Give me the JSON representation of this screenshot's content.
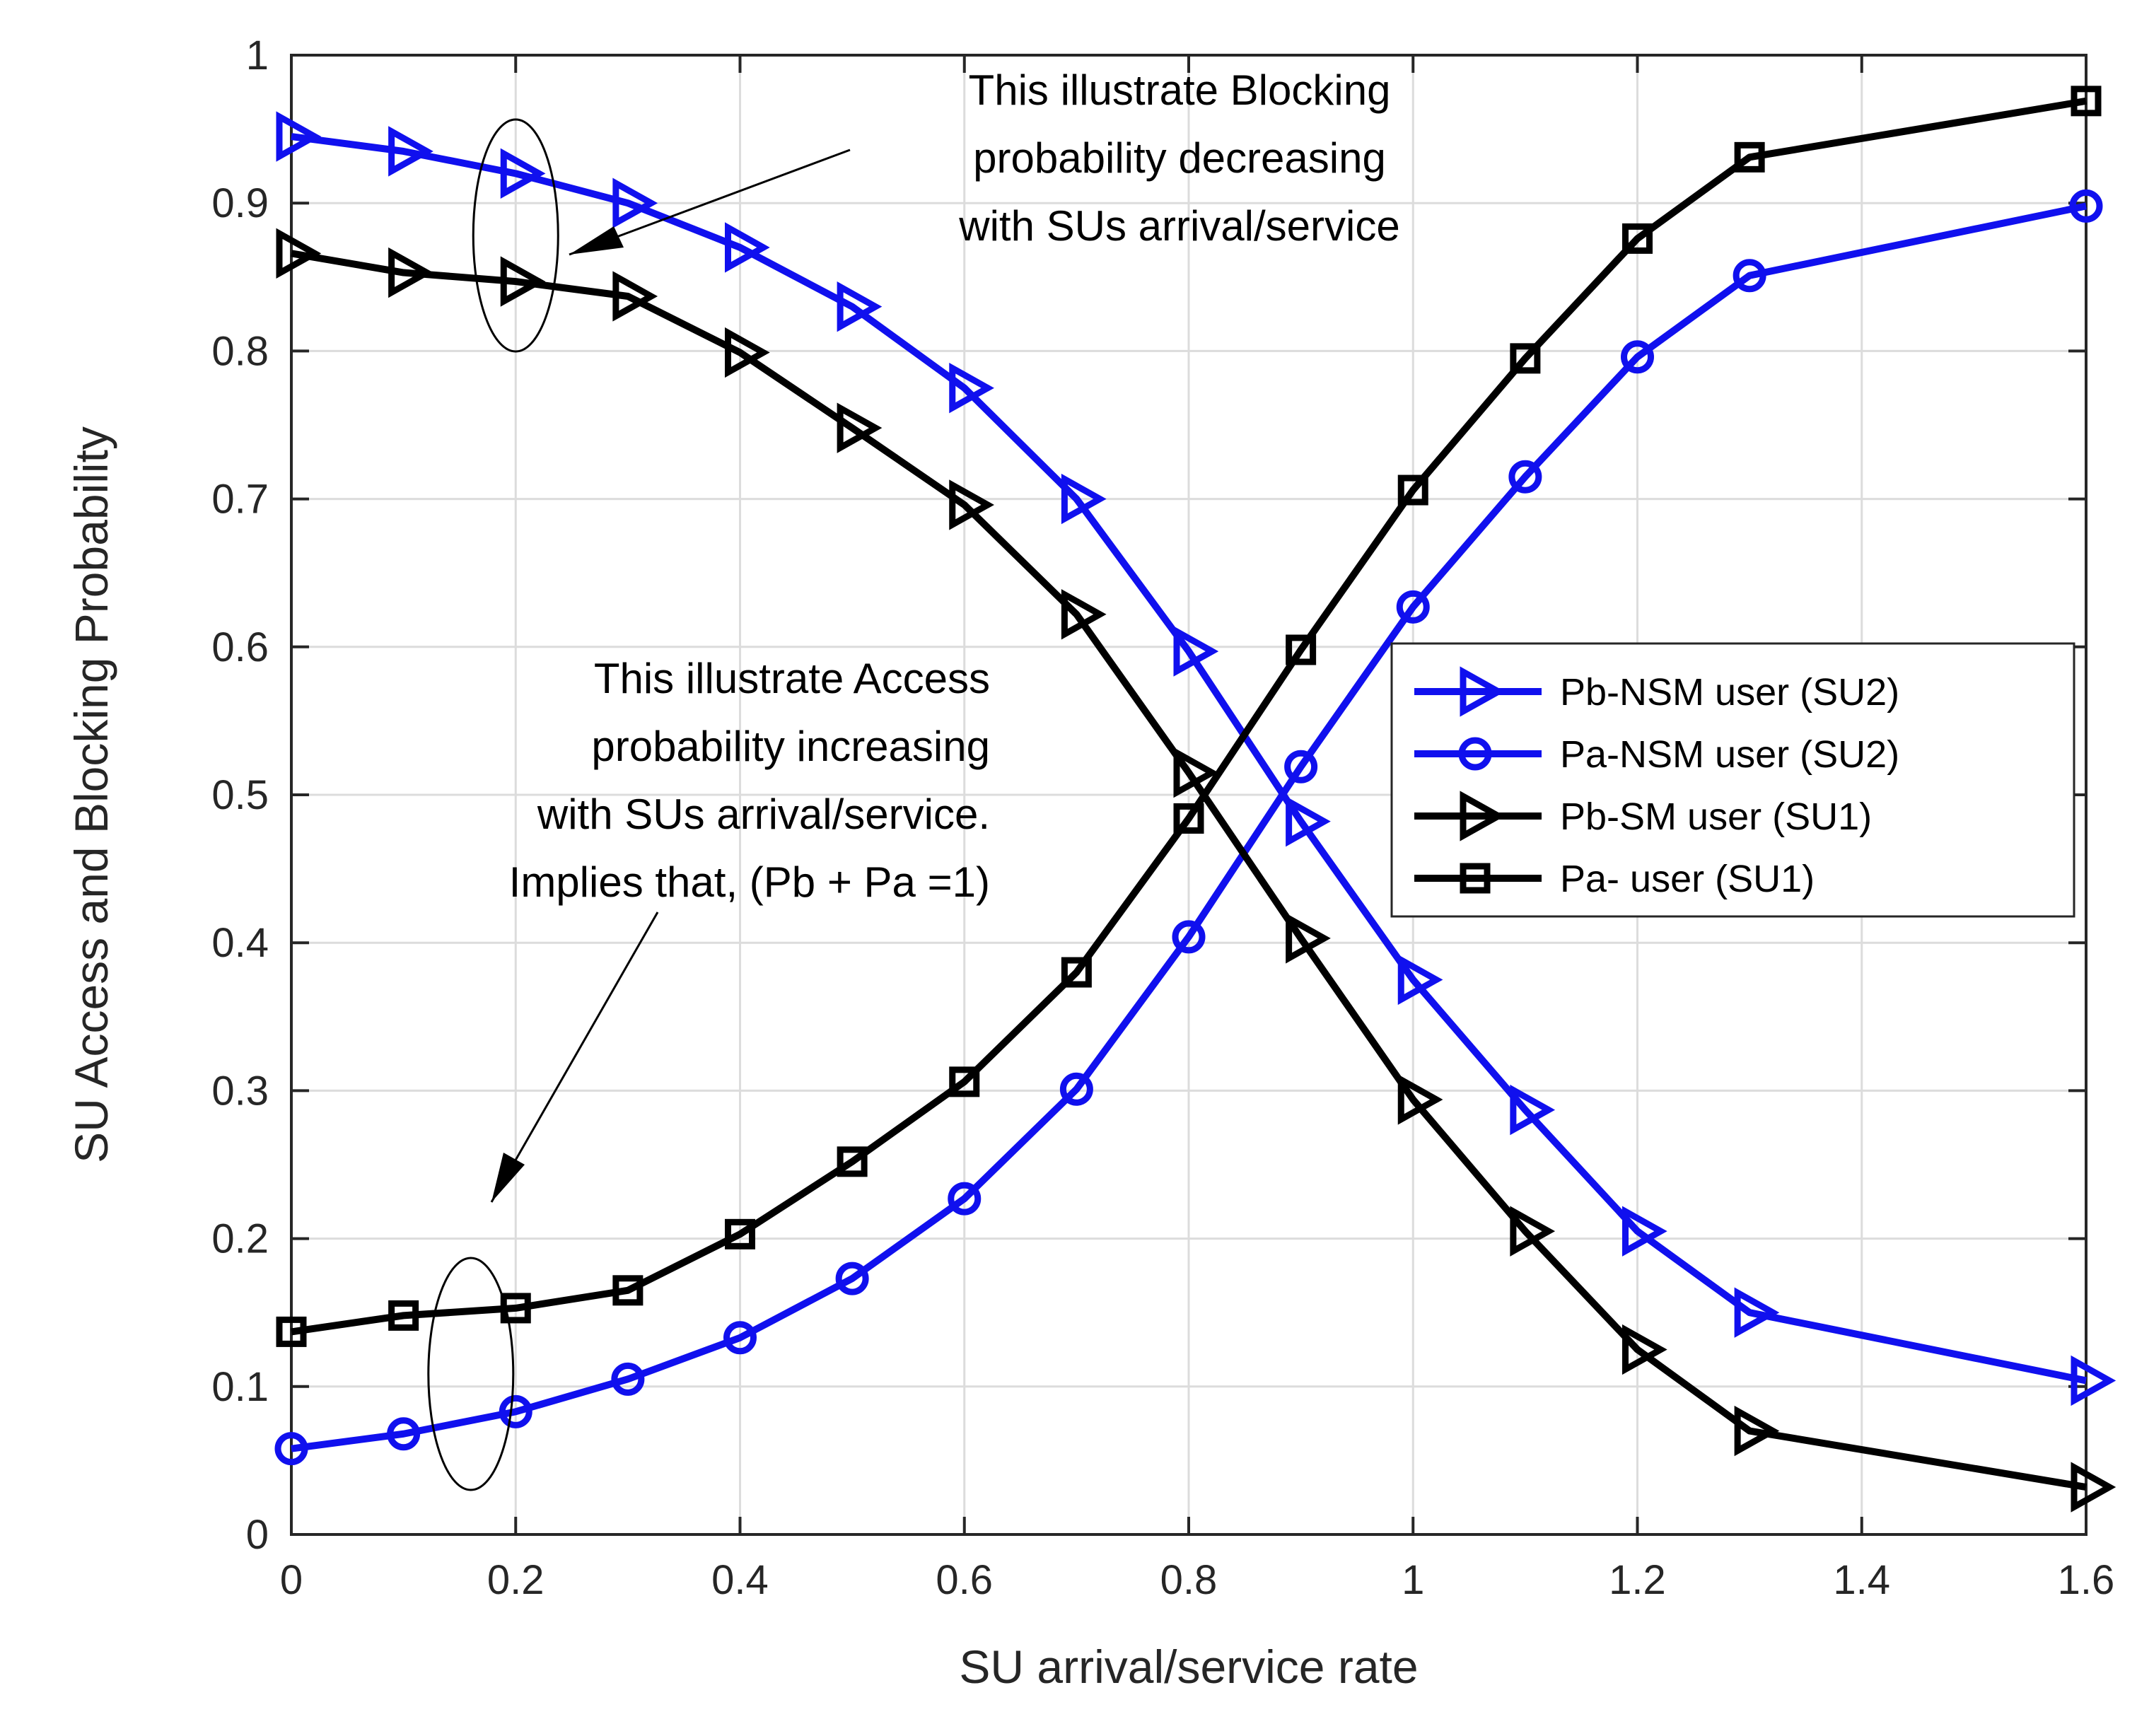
{
  "chart_data": {
    "type": "line",
    "title": "",
    "xlabel": "SU arrival/service rate",
    "ylabel": "SU Access and Blocking Probability",
    "xlim": [
      0,
      1.6
    ],
    "ylim": [
      0,
      1
    ],
    "grid": true,
    "xticks": [
      0,
      0.2,
      0.4,
      0.6,
      0.8,
      1,
      1.2,
      1.4,
      1.6
    ],
    "xtick_labels": [
      "0",
      "0.2",
      "0.4",
      "0.6",
      "0.8",
      "1",
      "1.2",
      "1.4",
      "1.6"
    ],
    "yticks": [
      0,
      0.1,
      0.2,
      0.3,
      0.4,
      0.5,
      0.6,
      0.7,
      0.8,
      0.9,
      1
    ],
    "ytick_labels": [
      "0",
      "0.1",
      "0.2",
      "0.3",
      "0.4",
      "0.5",
      "0.6",
      "0.7",
      "0.8",
      "0.9",
      "1"
    ],
    "x": [
      0,
      0.1,
      0.2,
      0.3,
      0.4,
      0.5,
      0.6,
      0.7,
      0.8,
      0.9,
      1.0,
      1.1,
      1.2,
      1.3,
      1.6
    ],
    "series": [
      {
        "name": "Pb-NSM user (SU2)",
        "color": "#1010ee",
        "marker": "triangle-right",
        "values": [
          0.945,
          0.935,
          0.92,
          0.9,
          0.87,
          0.83,
          0.775,
          0.7,
          0.597,
          0.482,
          0.375,
          0.287,
          0.205,
          0.15,
          0.104
        ]
      },
      {
        "name": "Pa-NSM user (SU2)",
        "color": "#1010ee",
        "marker": "circle",
        "values": [
          0.058,
          0.068,
          0.083,
          0.105,
          0.133,
          0.173,
          0.227,
          0.301,
          0.404,
          0.519,
          0.627,
          0.715,
          0.796,
          0.851,
          0.898
        ]
      },
      {
        "name": "Pb-SM user (SU1)",
        "color": "#000000",
        "marker": "triangle-right",
        "values": [
          0.866,
          0.853,
          0.847,
          0.837,
          0.799,
          0.748,
          0.696,
          0.622,
          0.515,
          0.403,
          0.294,
          0.205,
          0.125,
          0.07,
          0.032
        ]
      },
      {
        "name": "Pa- user (SU1)",
        "color": "#000000",
        "marker": "square",
        "values": [
          0.137,
          0.148,
          0.153,
          0.165,
          0.203,
          0.252,
          0.306,
          0.38,
          0.484,
          0.598,
          0.706,
          0.795,
          0.876,
          0.931,
          0.969
        ]
      }
    ],
    "legend_location": "center-right",
    "annotations": [
      {
        "lines": [
          "This illustrate Blocking",
          "probability decreasing",
          "with SUs arrival/service"
        ]
      },
      {
        "lines": [
          "This illustrate Access",
          "probability increasing",
          "with SUs arrival/service.",
          "Implies that, (Pb + Pa =1)"
        ]
      }
    ]
  }
}
